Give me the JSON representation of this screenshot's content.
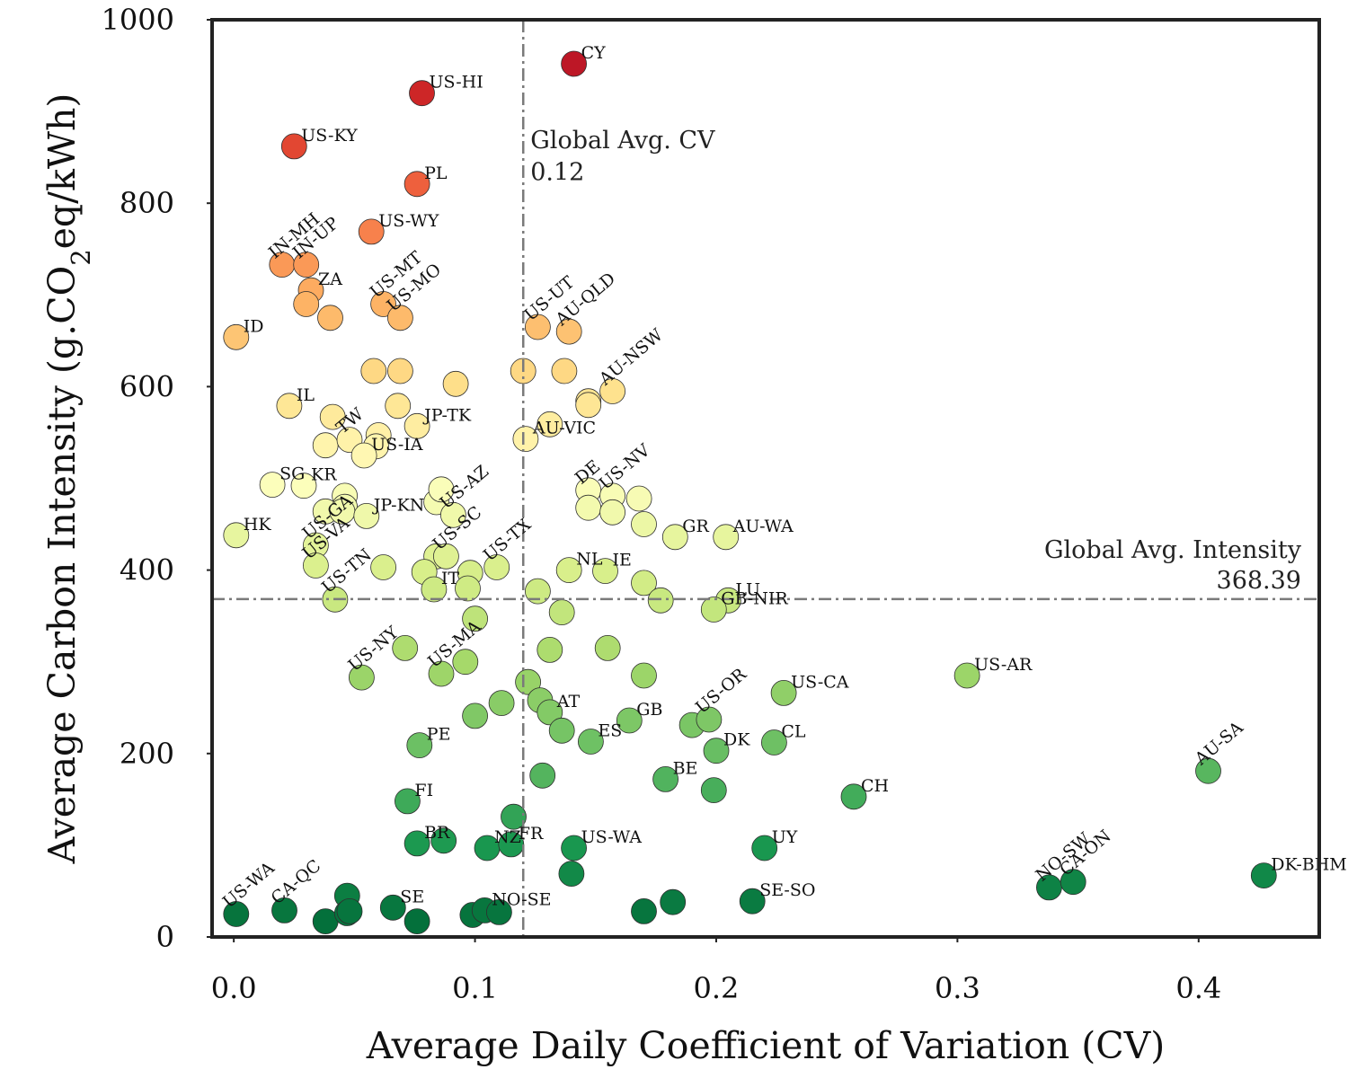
{
  "chart_data": {
    "type": "scatter",
    "title": "",
    "xlabel": "Average Daily Coefficient of Variation (CV)",
    "ylabel_parts": [
      "Average Carbon Intensity (g.CO",
      "2",
      "eq/kWh)"
    ],
    "xlim": [
      -0.009,
      0.45
    ],
    "ylim": [
      0,
      1000
    ],
    "xticks": [
      {
        "value": 0.0,
        "label": "0.0"
      },
      {
        "value": 0.1,
        "label": "0.1"
      },
      {
        "value": 0.2,
        "label": "0.2"
      },
      {
        "value": 0.3,
        "label": "0.3"
      },
      {
        "value": 0.4,
        "label": "0.4"
      }
    ],
    "yticks": [
      {
        "value": 0,
        "label": "0"
      },
      {
        "value": 200,
        "label": "200"
      },
      {
        "value": 400,
        "label": "400"
      },
      {
        "value": 600,
        "label": "600"
      },
      {
        "value": 800,
        "label": "800"
      },
      {
        "value": 1000,
        "label": "1000"
      }
    ],
    "grid": false,
    "colormap": "RdYlGn (by carbon intensity)",
    "reference_lines": {
      "global_avg_cv": {
        "value": 0.12,
        "label_line1": "Global Avg. CV",
        "label_line2": "0.12"
      },
      "global_avg_intensity": {
        "value": 368.39,
        "label_line1": "Global Avg. Intensity",
        "label_line2": "368.39"
      }
    },
    "points": [
      {
        "x": 0.141,
        "y": 952,
        "label": "CY",
        "rot": 0
      },
      {
        "x": 0.078,
        "y": 920,
        "label": "US-HI",
        "rot": 0
      },
      {
        "x": 0.025,
        "y": 862,
        "label": "US-KY",
        "rot": 0
      },
      {
        "x": 0.076,
        "y": 821,
        "label": "PL",
        "rot": 0
      },
      {
        "x": 0.057,
        "y": 769,
        "label": "US-WY",
        "rot": 0
      },
      {
        "x": 0.02,
        "y": 733,
        "label": "IN-MH",
        "rot": -40
      },
      {
        "x": 0.03,
        "y": 733,
        "label": "IN-UP",
        "rot": -40
      },
      {
        "x": 0.032,
        "y": 705,
        "label": "ZA",
        "rot": 0
      },
      {
        "x": 0.03,
        "y": 690,
        "label": "",
        "rot": 0
      },
      {
        "x": 0.04,
        "y": 675,
        "label": "",
        "rot": 0
      },
      {
        "x": 0.062,
        "y": 690,
        "label": "US-MT",
        "rot": -40
      },
      {
        "x": 0.069,
        "y": 675,
        "label": "US-MO",
        "rot": -40
      },
      {
        "x": 0.001,
        "y": 654,
        "label": "ID",
        "rot": 0
      },
      {
        "x": 0.126,
        "y": 665,
        "label": "US-UT",
        "rot": -40
      },
      {
        "x": 0.139,
        "y": 660,
        "label": "AU-QLD",
        "rot": -40
      },
      {
        "x": 0.058,
        "y": 617,
        "label": "",
        "rot": 0
      },
      {
        "x": 0.069,
        "y": 617,
        "label": "",
        "rot": 0
      },
      {
        "x": 0.092,
        "y": 603,
        "label": "",
        "rot": 0
      },
      {
        "x": 0.12,
        "y": 617,
        "label": "",
        "rot": 0
      },
      {
        "x": 0.137,
        "y": 617,
        "label": "",
        "rot": 0
      },
      {
        "x": 0.147,
        "y": 584,
        "label": "",
        "rot": 0
      },
      {
        "x": 0.147,
        "y": 580,
        "label": "",
        "rot": 0
      },
      {
        "x": 0.157,
        "y": 595,
        "label": "AU-NSW",
        "rot": -40
      },
      {
        "x": 0.023,
        "y": 579,
        "label": "IL",
        "rot": 0
      },
      {
        "x": 0.068,
        "y": 579,
        "label": "",
        "rot": 0
      },
      {
        "x": 0.041,
        "y": 567,
        "label": "",
        "rot": 0
      },
      {
        "x": 0.076,
        "y": 557,
        "label": "JP-TK",
        "rot": 0
      },
      {
        "x": 0.131,
        "y": 559,
        "label": "",
        "rot": 0
      },
      {
        "x": 0.038,
        "y": 536,
        "label": "",
        "rot": 0
      },
      {
        "x": 0.048,
        "y": 542,
        "label": "TW",
        "rot": -40
      },
      {
        "x": 0.06,
        "y": 547,
        "label": "",
        "rot": 0
      },
      {
        "x": 0.059,
        "y": 535,
        "label": "",
        "rot": 0
      },
      {
        "x": 0.054,
        "y": 525,
        "label": "US-IA",
        "rot": 0
      },
      {
        "x": 0.121,
        "y": 543,
        "label": "AU-VIC",
        "rot": 0
      },
      {
        "x": 0.016,
        "y": 493,
        "label": "SG",
        "rot": 0
      },
      {
        "x": 0.029,
        "y": 492,
        "label": "KR",
        "rot": 0
      },
      {
        "x": 0.046,
        "y": 481,
        "label": "",
        "rot": 0
      },
      {
        "x": 0.046,
        "y": 469,
        "label": "",
        "rot": 0
      },
      {
        "x": 0.038,
        "y": 464,
        "label": "",
        "rot": 0
      },
      {
        "x": 0.045,
        "y": 464,
        "label": "",
        "rot": 0
      },
      {
        "x": 0.055,
        "y": 459,
        "label": "JP-KN",
        "rot": 0
      },
      {
        "x": 0.084,
        "y": 474,
        "label": "",
        "rot": 0
      },
      {
        "x": 0.086,
        "y": 488,
        "label": "",
        "rot": 0
      },
      {
        "x": 0.091,
        "y": 460,
        "label": "US-AZ",
        "rot": -40
      },
      {
        "x": 0.147,
        "y": 487,
        "label": "DE",
        "rot": -40
      },
      {
        "x": 0.157,
        "y": 481,
        "label": "US-NV",
        "rot": -40
      },
      {
        "x": 0.168,
        "y": 478,
        "label": "",
        "rot": 0
      },
      {
        "x": 0.147,
        "y": 468,
        "label": "",
        "rot": 0
      },
      {
        "x": 0.157,
        "y": 463,
        "label": "",
        "rot": 0
      },
      {
        "x": 0.17,
        "y": 450,
        "label": "",
        "rot": 0
      },
      {
        "x": 0.001,
        "y": 438,
        "label": "HK",
        "rot": 0
      },
      {
        "x": 0.034,
        "y": 427,
        "label": "US-GA",
        "rot": -40
      },
      {
        "x": 0.084,
        "y": 415,
        "label": "",
        "rot": 0
      },
      {
        "x": 0.088,
        "y": 415,
        "label": "US-SC",
        "rot": -40
      },
      {
        "x": 0.109,
        "y": 403,
        "label": "US-TX",
        "rot": -40
      },
      {
        "x": 0.098,
        "y": 397,
        "label": "",
        "rot": 0
      },
      {
        "x": 0.062,
        "y": 403,
        "label": "",
        "rot": 0
      },
      {
        "x": 0.079,
        "y": 398,
        "label": "",
        "rot": 0
      },
      {
        "x": 0.139,
        "y": 400,
        "label": "NL",
        "rot": 0
      },
      {
        "x": 0.154,
        "y": 399,
        "label": "IE",
        "rot": 0
      },
      {
        "x": 0.183,
        "y": 436,
        "label": "GR",
        "rot": 0
      },
      {
        "x": 0.204,
        "y": 436,
        "label": "AU-WA",
        "rot": 0
      },
      {
        "x": 0.097,
        "y": 380,
        "label": "",
        "rot": 0
      },
      {
        "x": 0.083,
        "y": 379,
        "label": "IT",
        "rot": 0
      },
      {
        "x": 0.126,
        "y": 377,
        "label": "",
        "rot": 0
      },
      {
        "x": 0.17,
        "y": 386,
        "label": "",
        "rot": 0
      },
      {
        "x": 0.177,
        "y": 367,
        "label": "",
        "rot": 0
      },
      {
        "x": 0.205,
        "y": 367,
        "label": "LU",
        "rot": 0
      },
      {
        "x": 0.199,
        "y": 357,
        "label": "GB-NIR",
        "rot": 0
      },
      {
        "x": 0.042,
        "y": 368,
        "label": "US-TN",
        "rot": -40
      },
      {
        "x": 0.1,
        "y": 347,
        "label": "",
        "rot": 0
      },
      {
        "x": 0.136,
        "y": 354,
        "label": "",
        "rot": 0
      },
      {
        "x": 0.034,
        "y": 405,
        "label": "US-VA",
        "rot": -40
      },
      {
        "x": 0.071,
        "y": 315,
        "label": "",
        "rot": 0
      },
      {
        "x": 0.096,
        "y": 300,
        "label": "",
        "rot": 0
      },
      {
        "x": 0.155,
        "y": 315,
        "label": "",
        "rot": 0
      },
      {
        "x": 0.131,
        "y": 313,
        "label": "",
        "rot": 0
      },
      {
        "x": 0.086,
        "y": 287,
        "label": "US-MA",
        "rot": -40
      },
      {
        "x": 0.053,
        "y": 283,
        "label": "US-NY",
        "rot": -40
      },
      {
        "x": 0.17,
        "y": 285,
        "label": "",
        "rot": 0
      },
      {
        "x": 0.122,
        "y": 278,
        "label": "",
        "rot": 0
      },
      {
        "x": 0.127,
        "y": 258,
        "label": "",
        "rot": 0
      },
      {
        "x": 0.131,
        "y": 245,
        "label": "AT",
        "rot": 0
      },
      {
        "x": 0.111,
        "y": 255,
        "label": "",
        "rot": 0
      },
      {
        "x": 0.1,
        "y": 241,
        "label": "",
        "rot": 0
      },
      {
        "x": 0.164,
        "y": 236,
        "label": "GB",
        "rot": 0
      },
      {
        "x": 0.19,
        "y": 231,
        "label": "",
        "rot": 0
      },
      {
        "x": 0.197,
        "y": 237,
        "label": "US-OR",
        "rot": -40
      },
      {
        "x": 0.228,
        "y": 266,
        "label": "US-CA",
        "rot": 0
      },
      {
        "x": 0.304,
        "y": 285,
        "label": "US-AR",
        "rot": 0
      },
      {
        "x": 0.077,
        "y": 209,
        "label": "PE",
        "rot": 0
      },
      {
        "x": 0.136,
        "y": 225,
        "label": "",
        "rot": 0
      },
      {
        "x": 0.148,
        "y": 213,
        "label": "ES",
        "rot": 0
      },
      {
        "x": 0.2,
        "y": 203,
        "label": "DK",
        "rot": 0
      },
      {
        "x": 0.224,
        "y": 212,
        "label": "CL",
        "rot": 0
      },
      {
        "x": 0.128,
        "y": 176,
        "label": "",
        "rot": 0
      },
      {
        "x": 0.179,
        "y": 172,
        "label": "BE",
        "rot": 0
      },
      {
        "x": 0.199,
        "y": 160,
        "label": "",
        "rot": 0
      },
      {
        "x": 0.257,
        "y": 153,
        "label": "CH",
        "rot": 0
      },
      {
        "x": 0.404,
        "y": 181,
        "label": "AU-SA",
        "rot": -40
      },
      {
        "x": 0.072,
        "y": 148,
        "label": "FI",
        "rot": 0
      },
      {
        "x": 0.116,
        "y": 131,
        "label": "",
        "rot": 0
      },
      {
        "x": 0.076,
        "y": 102,
        "label": "BR",
        "rot": 0
      },
      {
        "x": 0.087,
        "y": 105,
        "label": "",
        "rot": 0
      },
      {
        "x": 0.105,
        "y": 97,
        "label": "NZ",
        "rot": 0
      },
      {
        "x": 0.115,
        "y": 101,
        "label": "FR",
        "rot": 0
      },
      {
        "x": 0.141,
        "y": 97,
        "label": "US-WA",
        "rot": 0
      },
      {
        "x": 0.14,
        "y": 69,
        "label": "",
        "rot": 0
      },
      {
        "x": 0.22,
        "y": 97,
        "label": "UY",
        "rot": 0
      },
      {
        "x": 0.338,
        "y": 54,
        "label": "NO-SW",
        "rot": -40
      },
      {
        "x": 0.348,
        "y": 60,
        "label": "CA-ON",
        "rot": -40
      },
      {
        "x": 0.427,
        "y": 67,
        "label": "DK-BHM",
        "rot": 0
      },
      {
        "x": 0.001,
        "y": 25,
        "label": "US-WA",
        "rot": -40
      },
      {
        "x": 0.021,
        "y": 29,
        "label": "CA-QC",
        "rot": -40
      },
      {
        "x": 0.038,
        "y": 17,
        "label": "",
        "rot": 0
      },
      {
        "x": 0.047,
        "y": 45,
        "label": "",
        "rot": 0
      },
      {
        "x": 0.047,
        "y": 26,
        "label": "",
        "rot": 0
      },
      {
        "x": 0.048,
        "y": 28,
        "label": "",
        "rot": 0
      },
      {
        "x": 0.066,
        "y": 32,
        "label": "SE",
        "rot": 0
      },
      {
        "x": 0.076,
        "y": 17,
        "label": "",
        "rot": 0
      },
      {
        "x": 0.099,
        "y": 24,
        "label": "",
        "rot": 0
      },
      {
        "x": 0.104,
        "y": 29,
        "label": "NO-SE",
        "rot": 0
      },
      {
        "x": 0.11,
        "y": 27,
        "label": "",
        "rot": 0
      },
      {
        "x": 0.17,
        "y": 28,
        "label": "",
        "rot": 0
      },
      {
        "x": 0.182,
        "y": 38,
        "label": "",
        "rot": 0
      },
      {
        "x": 0.215,
        "y": 39,
        "label": "SE-SO",
        "rot": 0
      }
    ]
  }
}
